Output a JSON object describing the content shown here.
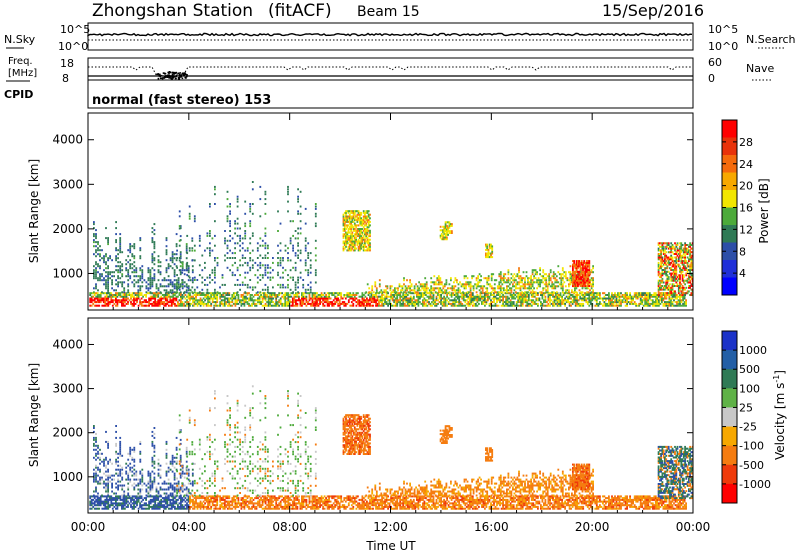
{
  "header": {
    "station": "Zhongshan Station",
    "mode": "(fitACF)",
    "beam": "Beam 15",
    "date": "15/Sep/2016"
  },
  "panels": {
    "nsky_label": "N.Sky",
    "nsky_ticks": [
      "10^5",
      "10^0"
    ],
    "nsearch_label": "N.Search",
    "nsearch_ticks": [
      "10^5",
      "10^0"
    ],
    "freq_label_1": "Freq.",
    "freq_label_2": "[MHz]",
    "freq_ticks": [
      "18",
      "8"
    ],
    "nave_label": "Nave",
    "nave_ticks": [
      "60",
      "0"
    ],
    "cpid_label": "CPID",
    "cpid_text": "normal (fast stereo) 153"
  },
  "chart_data": [
    {
      "type": "heatmap",
      "name": "power",
      "ylabel": "Slant Range [km]",
      "ylim": [
        180,
        4600
      ],
      "yticks": [
        "4000",
        "3000",
        "2000",
        "1000"
      ],
      "yticks_values": [
        4000,
        3000,
        2000,
        1000
      ],
      "colorbar_label": "Power [dB]",
      "colorbar_ticks": [
        "28",
        "24",
        "20",
        "16",
        "12",
        "8",
        "4"
      ],
      "colorbar_colors": [
        "#ff0000",
        "#e8320a",
        "#f56a0c",
        "#f7a800",
        "#f2e600",
        "#4caa3a",
        "#2f7a55",
        "#2d4fa8",
        "#1f2fd8",
        "#0000ff"
      ],
      "grid": false
    },
    {
      "type": "heatmap",
      "name": "velocity",
      "ylabel": "Slant Range [km]",
      "ylim": [
        180,
        4600
      ],
      "yticks": [
        "4000",
        "3000",
        "2000",
        "1000"
      ],
      "yticks_values": [
        4000,
        3000,
        2000,
        1000
      ],
      "xlabel": "Time UT",
      "xticks": [
        "00:00",
        "04:00",
        "08:00",
        "12:00",
        "16:00",
        "20:00",
        "00:00"
      ],
      "xticks_hours": [
        0,
        4,
        8,
        12,
        16,
        20,
        24
      ],
      "colorbar_label": "Velocity [m s",
      "colorbar_label_sup": "-1",
      "colorbar_label_end": "]",
      "colorbar_ticks": [
        "1000",
        "500",
        "100",
        "25",
        "-25",
        "-100",
        "-500",
        "-1000"
      ],
      "colorbar_colors": [
        "#1b32c8",
        "#235fa6",
        "#2f7a55",
        "#5fb247",
        "#c8c8c8",
        "#f7a800",
        "#f57c10",
        "#ef3a0a",
        "#ff0000"
      ],
      "grid": false
    }
  ],
  "colors": {
    "blue": "#2d4fa8",
    "green": "#4caa3a",
    "darkgreen": "#2f7a55",
    "yellow": "#f2e600",
    "orange": "#f57c10",
    "red": "#ff0000",
    "grey": "#c8c8c8"
  }
}
